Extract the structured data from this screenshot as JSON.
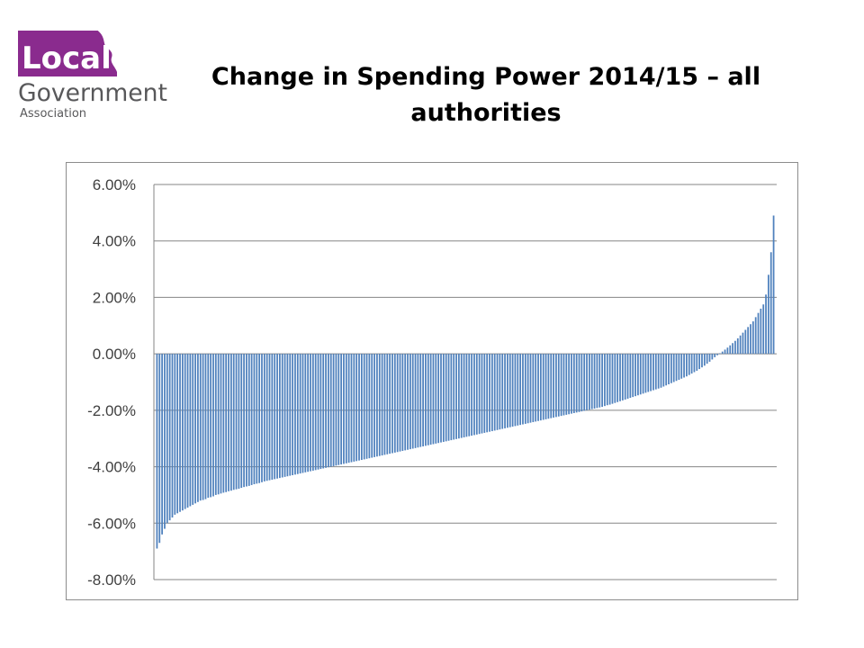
{
  "logo": {
    "brand_word": "Local",
    "line2": "Government",
    "line3": "Association",
    "brand_color": "#8a2b8e",
    "text_color": "#58585a"
  },
  "title": {
    "line1": "Change in Spending Power 2014/15 – all",
    "line2": "authorities"
  },
  "chart_data": {
    "type": "bar",
    "title": "",
    "xlabel": "",
    "ylabel": "",
    "ylim": [
      -8,
      6
    ],
    "y_ticks": [
      "6.00%",
      "4.00%",
      "2.00%",
      "0.00%",
      "-2.00%",
      "-4.00%",
      "-6.00%",
      "-8.00%"
    ],
    "y_tick_values": [
      6,
      4,
      2,
      0,
      -2,
      -4,
      -6,
      -8
    ],
    "grid": true,
    "legend": "none",
    "bar_color": "#4f81bd",
    "sorted": "ascending",
    "values": [
      -6.9,
      -6.7,
      -6.4,
      -6.2,
      -6.0,
      -5.9,
      -5.8,
      -5.7,
      -5.65,
      -5.6,
      -5.55,
      -5.5,
      -5.45,
      -5.4,
      -5.35,
      -5.3,
      -5.25,
      -5.2,
      -5.18,
      -5.15,
      -5.1,
      -5.08,
      -5.05,
      -5.0,
      -4.98,
      -4.95,
      -4.92,
      -4.9,
      -4.87,
      -4.85,
      -4.82,
      -4.8,
      -4.78,
      -4.75,
      -4.72,
      -4.7,
      -4.68,
      -4.65,
      -4.62,
      -4.6,
      -4.58,
      -4.55,
      -4.52,
      -4.5,
      -4.48,
      -4.46,
      -4.44,
      -4.42,
      -4.4,
      -4.38,
      -4.36,
      -4.34,
      -4.32,
      -4.3,
      -4.28,
      -4.26,
      -4.24,
      -4.22,
      -4.2,
      -4.18,
      -4.16,
      -4.14,
      -4.12,
      -4.1,
      -4.08,
      -4.06,
      -4.04,
      -4.02,
      -4.0,
      -3.98,
      -3.96,
      -3.94,
      -3.92,
      -3.9,
      -3.88,
      -3.86,
      -3.84,
      -3.82,
      -3.8,
      -3.78,
      -3.76,
      -3.74,
      -3.72,
      -3.7,
      -3.68,
      -3.66,
      -3.64,
      -3.62,
      -3.6,
      -3.58,
      -3.56,
      -3.54,
      -3.52,
      -3.5,
      -3.48,
      -3.46,
      -3.44,
      -3.42,
      -3.4,
      -3.38,
      -3.36,
      -3.34,
      -3.32,
      -3.3,
      -3.28,
      -3.26,
      -3.24,
      -3.22,
      -3.2,
      -3.18,
      -3.16,
      -3.14,
      -3.12,
      -3.1,
      -3.08,
      -3.06,
      -3.04,
      -3.02,
      -3.0,
      -2.98,
      -2.96,
      -2.94,
      -2.92,
      -2.9,
      -2.88,
      -2.86,
      -2.84,
      -2.82,
      -2.8,
      -2.78,
      -2.76,
      -2.74,
      -2.72,
      -2.7,
      -2.68,
      -2.66,
      -2.64,
      -2.62,
      -2.6,
      -2.58,
      -2.56,
      -2.54,
      -2.52,
      -2.5,
      -2.48,
      -2.46,
      -2.44,
      -2.42,
      -2.4,
      -2.38,
      -2.36,
      -2.34,
      -2.32,
      -2.3,
      -2.28,
      -2.26,
      -2.24,
      -2.22,
      -2.2,
      -2.18,
      -2.16,
      -2.14,
      -2.12,
      -2.1,
      -2.08,
      -2.06,
      -2.04,
      -2.02,
      -2.0,
      -1.98,
      -1.96,
      -1.94,
      -1.92,
      -1.9,
      -1.88,
      -1.85,
      -1.82,
      -1.8,
      -1.77,
      -1.74,
      -1.71,
      -1.68,
      -1.65,
      -1.62,
      -1.59,
      -1.56,
      -1.53,
      -1.5,
      -1.47,
      -1.44,
      -1.41,
      -1.38,
      -1.35,
      -1.32,
      -1.29,
      -1.26,
      -1.23,
      -1.2,
      -1.16,
      -1.12,
      -1.08,
      -1.04,
      -1.0,
      -0.96,
      -0.92,
      -0.88,
      -0.84,
      -0.8,
      -0.75,
      -0.7,
      -0.65,
      -0.6,
      -0.54,
      -0.48,
      -0.42,
      -0.35,
      -0.28,
      -0.2,
      -0.12,
      -0.05,
      0.02,
      0.08,
      0.15,
      0.22,
      0.3,
      0.38,
      0.46,
      0.55,
      0.65,
      0.75,
      0.85,
      0.95,
      1.05,
      1.15,
      1.3,
      1.45,
      1.6,
      1.75,
      2.1,
      2.8,
      3.6,
      4.9
    ]
  }
}
